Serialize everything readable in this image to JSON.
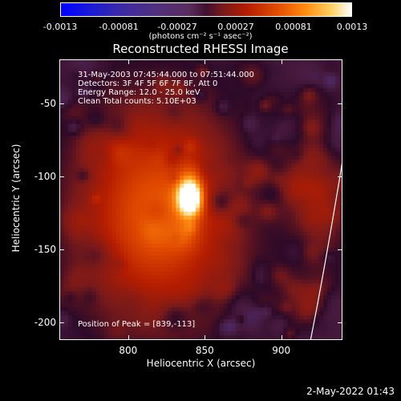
{
  "colorbar": {
    "ticks": [
      "-0.0013",
      "-0.00081",
      "-0.00027",
      "0.00027",
      "0.00081",
      "0.0013"
    ],
    "label": "(photons cm⁻² s⁻¹ asec⁻²)"
  },
  "chart_data": {
    "type": "heatmap",
    "title": "Reconstructed RHESSI Image",
    "xlabel": "Heliocentric X (arcsec)",
    "ylabel": "Heliocentric Y (arcsec)",
    "x_ticks": [
      800,
      850,
      900
    ],
    "y_ticks": [
      -50,
      -100,
      -150,
      -200
    ],
    "xlim": [
      755,
      940
    ],
    "ylim": [
      -212,
      -20
    ],
    "zlim": [
      -0.0013,
      0.0013
    ],
    "peak": [
      839,
      -113
    ],
    "annotations": [
      "31-May-2003 07:45:44.000 to 07:51:44.000",
      "Detectors: 3F 4F 5F 6F 7F 8F, Att 0",
      "Energy Range: 12.0 - 25.0 keV",
      "Clean    Total counts: 5.10E+03"
    ],
    "peak_label": "Position of Peak = [839,-113]"
  },
  "footer": {
    "timestamp": "2-May-2022 01:43"
  }
}
